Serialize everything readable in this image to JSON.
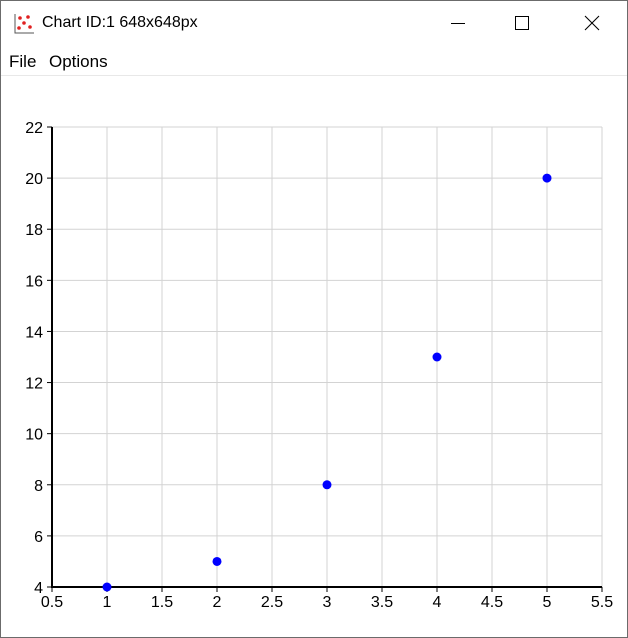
{
  "window": {
    "title": "Chart ID:1 648x648px",
    "icon": "scatter-chart-icon",
    "controls": [
      "minimize-icon",
      "maximize-icon",
      "close-icon"
    ]
  },
  "menu": {
    "items": [
      {
        "label": "File"
      },
      {
        "label": "Options"
      }
    ]
  },
  "chart_data": {
    "type": "scatter",
    "x": [
      1,
      2,
      3,
      4,
      5
    ],
    "y": [
      4,
      5,
      8,
      13,
      20
    ],
    "xlim": [
      0.5,
      5.5
    ],
    "ylim": [
      4,
      22
    ],
    "xticks": [
      "0.5",
      "1",
      "1.5",
      "2",
      "2.5",
      "3",
      "3.5",
      "4",
      "4.5",
      "5",
      "5.5"
    ],
    "yticks": [
      "4",
      "6",
      "8",
      "10",
      "12",
      "14",
      "16",
      "18",
      "20",
      "22"
    ],
    "grid": true,
    "marker_color": "#0000ff"
  }
}
